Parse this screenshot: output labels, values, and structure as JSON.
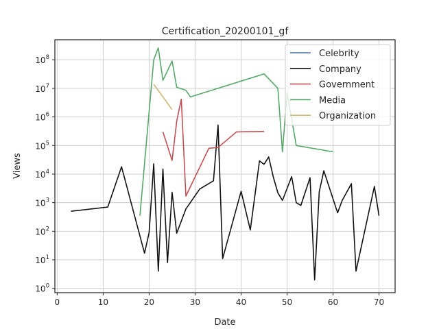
{
  "chart_data": {
    "type": "line",
    "title": "Certification_20200101_gf",
    "xlabel": "Date",
    "ylabel": "Views",
    "xlim": [
      -0.5,
      73.5
    ],
    "ylim_log10": [
      -0.15,
      8.7
    ],
    "yscale": "log",
    "x_ticks": [
      0,
      10,
      20,
      30,
      40,
      50,
      60,
      70
    ],
    "y_ticks_exponent": [
      0,
      1,
      2,
      3,
      4,
      5,
      6,
      7,
      8
    ],
    "y_tick_base": "10",
    "grid": true,
    "legend_position": "top-right",
    "series": [
      {
        "name": "Celebrity",
        "color": "#4c72b0",
        "points": []
      },
      {
        "name": "Company",
        "color": "#111111",
        "points": [
          [
            3,
            500
          ],
          [
            11,
            700
          ],
          [
            14,
            18000
          ],
          [
            19,
            17
          ],
          [
            20,
            90
          ],
          [
            21,
            23000
          ],
          [
            22,
            4
          ],
          [
            23,
            15000
          ],
          [
            24,
            8
          ],
          [
            25,
            2300
          ],
          [
            26,
            85
          ],
          [
            28,
            600
          ],
          [
            31,
            3000
          ],
          [
            34,
            5800
          ],
          [
            35,
            520000
          ],
          [
            36,
            11
          ],
          [
            40,
            2500
          ],
          [
            42,
            110
          ],
          [
            44,
            29000
          ],
          [
            45,
            22000
          ],
          [
            46,
            40000
          ],
          [
            47,
            8000
          ],
          [
            48,
            2200
          ],
          [
            49,
            1200
          ],
          [
            51,
            8200
          ],
          [
            52,
            1000
          ],
          [
            53,
            800
          ],
          [
            55,
            7500
          ],
          [
            56,
            2
          ],
          [
            57,
            2400
          ],
          [
            58,
            13000
          ],
          [
            61,
            440
          ],
          [
            62,
            1200
          ],
          [
            64,
            4600
          ],
          [
            65,
            4
          ],
          [
            69,
            3700
          ],
          [
            70,
            350
          ]
        ]
      },
      {
        "name": "Government",
        "color": "#c44e52",
        "points": [
          [
            23,
            300000
          ],
          [
            25,
            30000
          ],
          [
            26,
            700000
          ],
          [
            27,
            4200000
          ],
          [
            28,
            1700
          ],
          [
            33,
            80000
          ],
          [
            35,
            85000
          ],
          [
            39,
            300000
          ],
          [
            45,
            310000
          ]
        ]
      },
      {
        "name": "Media",
        "color": "#55a868",
        "points": [
          [
            18,
            350
          ],
          [
            21,
            100000000
          ],
          [
            22,
            260000000
          ],
          [
            23,
            19000000
          ],
          [
            25,
            90000000
          ],
          [
            26,
            11000000
          ],
          [
            28,
            8500000
          ],
          [
            29,
            5000000
          ],
          [
            45,
            32000000
          ],
          [
            48,
            10000000
          ],
          [
            49,
            60000
          ],
          [
            50,
            7000000
          ],
          [
            52,
            100000
          ],
          [
            60,
            60000
          ]
        ]
      },
      {
        "name": "Organization",
        "color": "#ccb974",
        "points": [
          [
            21,
            14000000
          ],
          [
            25,
            1800000
          ]
        ]
      }
    ]
  }
}
